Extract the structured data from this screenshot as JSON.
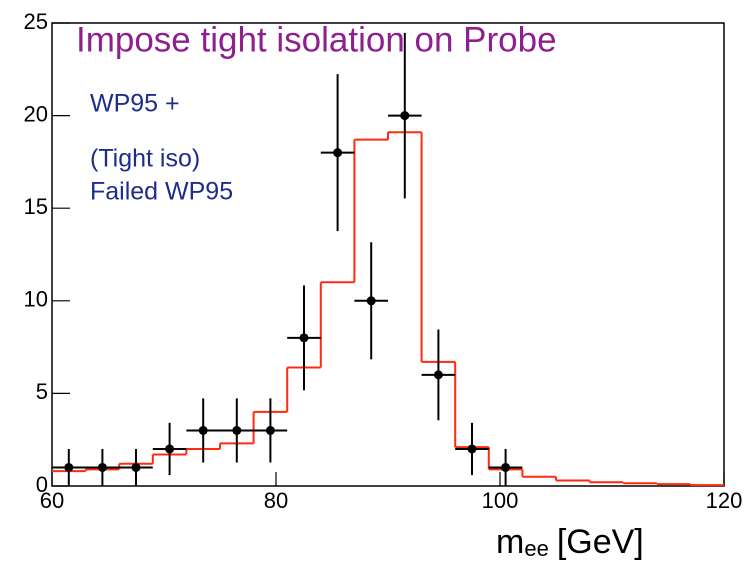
{
  "chart_data": {
    "type": "histogram",
    "title": "Impose tight isolation on Probe",
    "legend_lines": [
      "WP95 +",
      "(Tight iso)",
      "Failed WP95"
    ],
    "xlabel": {
      "main": "m",
      "sub": "ee",
      "unit": "[GeV]"
    },
    "bins": [
      60,
      63,
      66,
      69,
      72,
      75,
      78,
      81,
      84,
      87,
      90,
      93,
      96,
      99,
      102,
      105,
      108,
      111,
      114,
      117,
      120
    ],
    "counts": [
      0.8,
      0.9,
      1.2,
      1.7,
      2.0,
      2.3,
      4.0,
      6.4,
      11.0,
      18.7,
      19.1,
      6.7,
      2.1,
      0.9,
      0.5,
      0.3,
      0.2,
      0.15,
      0.1,
      0.05
    ],
    "color": "#ff2a10",
    "points": {
      "x": [
        61.5,
        64.5,
        67.5,
        70.5,
        73.5,
        76.5,
        79.5,
        82.5,
        85.5,
        88.5,
        91.5,
        94.5,
        97.5,
        100.5
      ],
      "values": [
        1,
        1,
        1,
        2,
        3,
        3,
        3,
        8,
        18,
        10,
        20,
        6,
        2,
        1
      ],
      "errors": [
        1,
        1,
        1,
        1.41,
        1.73,
        1.73,
        1.73,
        2.83,
        4.24,
        3.16,
        4.47,
        2.45,
        1.41,
        1
      ],
      "xerr": [
        1.5,
        1.5,
        1.5,
        1.5,
        1.5,
        1.5,
        1.5,
        1.5,
        1.5,
        1.5,
        1.5,
        1.5,
        1.5,
        1.5
      ],
      "color": "#000000"
    },
    "xlim": [
      60,
      120
    ],
    "xticks": [
      60,
      80,
      100,
      120
    ],
    "ylim": [
      0,
      25
    ],
    "yticks": [
      0,
      5,
      10,
      15,
      20,
      25
    ]
  }
}
